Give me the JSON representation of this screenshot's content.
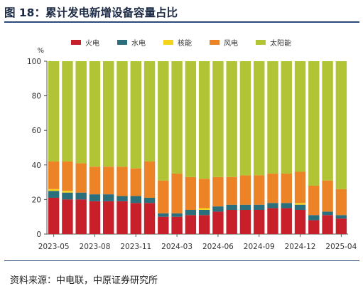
{
  "header": {
    "title": "图 18：累计发电新增设备容量占比"
  },
  "footer": {
    "source": "资料来源：中电联，中原证券研究所"
  },
  "chart_data": {
    "type": "bar",
    "stacked": true,
    "y_unit": "%",
    "ylim": [
      0,
      100
    ],
    "y_ticks": [
      0,
      20,
      40,
      60,
      80,
      100
    ],
    "x_tick_labels": [
      "2023-05",
      "2023-08",
      "2023-11",
      "2024-03",
      "2024-06",
      "2024-09",
      "2024-12",
      "2025-04"
    ],
    "x_tick_indices": [
      0,
      3,
      6,
      9,
      12,
      15,
      18,
      21
    ],
    "legend_position": "top-center",
    "grid": false,
    "categories": [
      "2023-05",
      "2023-06",
      "2023-07",
      "2023-08",
      "2023-09",
      "2023-10",
      "2023-11",
      "2023-12",
      "2024-02",
      "2024-03",
      "2024-04",
      "2024-05",
      "2024-06",
      "2024-07",
      "2024-08",
      "2024-09",
      "2024-10",
      "2024-11",
      "2024-12",
      "2025-02",
      "2025-03",
      "2025-04"
    ],
    "series": [
      {
        "name": "火电",
        "color": "#c8202a",
        "values": [
          21,
          20,
          20,
          19,
          19,
          19,
          18,
          18,
          10,
          10,
          11,
          11,
          13,
          14,
          14,
          14,
          15,
          15,
          14,
          8,
          11,
          9
        ]
      },
      {
        "name": "水电",
        "color": "#2b6e7c",
        "values": [
          4,
          4,
          4,
          4,
          4,
          3,
          4,
          3,
          2,
          2,
          3,
          3,
          3,
          3,
          3,
          3,
          3,
          3,
          3,
          3,
          2,
          2
        ]
      },
      {
        "name": "核能",
        "color": "#f5d21c",
        "values": [
          1,
          1,
          0,
          0,
          0,
          0,
          0,
          0,
          0,
          0,
          0,
          1,
          0,
          0,
          0,
          0,
          0,
          0,
          1,
          0,
          0,
          0
        ]
      },
      {
        "name": "风电",
        "color": "#ec8326",
        "values": [
          16,
          17,
          17,
          16,
          16,
          17,
          16,
          21,
          19,
          23,
          19,
          17,
          17,
          16,
          17,
          17,
          17,
          17,
          18,
          17,
          18,
          15
        ]
      },
      {
        "name": "太阳能",
        "color": "#b0c435",
        "values": [
          58,
          58,
          59,
          61,
          61,
          61,
          62,
          58,
          69,
          65,
          67,
          68,
          67,
          67,
          66,
          66,
          65,
          65,
          64,
          72,
          69,
          74
        ]
      }
    ]
  }
}
